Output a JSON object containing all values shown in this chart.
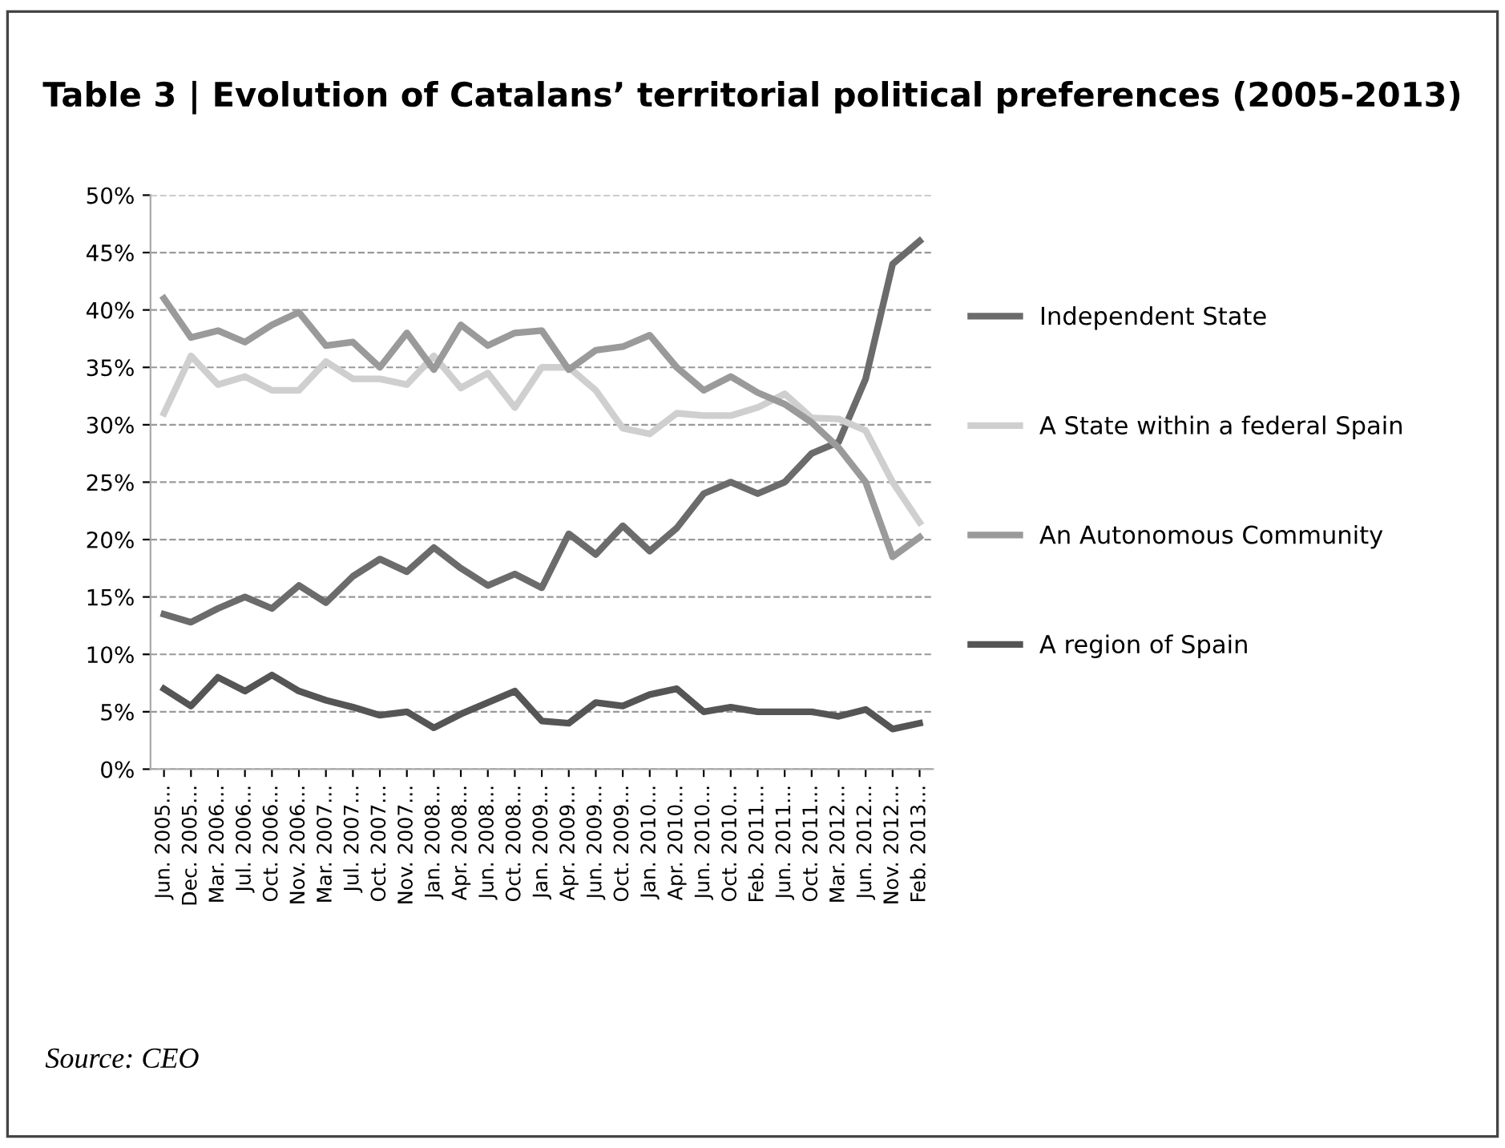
{
  "chart_data": {
    "type": "line",
    "title": "Table 3 | Evolution of Catalans’ territorial political preferences (2005-2013)",
    "categories": [
      "Jun. 2005...",
      "Dec. 2005...",
      "Mar. 2006...",
      "Jul. 2006...",
      "Oct. 2006...",
      "Nov. 2006...",
      "Mar. 2007...",
      "Jul. 2007...",
      "Oct. 2007...",
      "Nov. 2007...",
      "Jan. 2008...",
      "Apr. 2008...",
      "Jun. 2008...",
      "Oct. 2008...",
      "Jan. 2009...",
      "Apr. 2009...",
      "Jun. 2009...",
      "Oct. 2009...",
      "Jan. 2010...",
      "Apr. 2010...",
      "Jun. 2010...",
      "Oct. 2010...",
      "Feb. 2011...",
      "Jun. 2011...",
      "Oct. 2011...",
      "Mar. 2012...",
      "Jun. 2012...",
      "Nov. 2012...",
      "Feb. 2013..."
    ],
    "series": [
      {
        "name": "Independent State",
        "color": "#6b6b6b",
        "values": [
          13.5,
          12.8,
          14,
          15,
          14,
          16,
          14.5,
          16.8,
          18.3,
          17.2,
          19.3,
          17.5,
          16,
          17,
          15.8,
          20.5,
          18.7,
          21.2,
          19,
          21,
          24,
          25,
          24,
          25,
          27.5,
          28.5,
          34,
          44,
          46
        ]
      },
      {
        "name": "A State within a federal Spain",
        "color": "#cfcfcf",
        "values": [
          31,
          36,
          33.5,
          34.2,
          33,
          33,
          35.5,
          34,
          34,
          33.5,
          36,
          33.2,
          34.5,
          31.5,
          35,
          35,
          33,
          29.7,
          29.2,
          31,
          30.8,
          30.8,
          31.5,
          32.7,
          30.6,
          30.5,
          29.5,
          25,
          21.5
        ]
      },
      {
        "name": "An Autonomous Community",
        "color": "#9a9a9a",
        "values": [
          41,
          37.6,
          38.2,
          37.2,
          38.7,
          39.8,
          36.9,
          37.2,
          35,
          38,
          34.8,
          38.7,
          36.9,
          38,
          38.2,
          34.8,
          36.5,
          36.8,
          37.8,
          35,
          33,
          34.2,
          32.8,
          31.8,
          30.2,
          28,
          25,
          18.5,
          20.2
        ]
      },
      {
        "name": "A region of Spain",
        "color": "#555555",
        "values": [
          7,
          5.5,
          8,
          6.8,
          8.2,
          6.8,
          6,
          5.4,
          4.7,
          5,
          3.6,
          4.8,
          5.8,
          6.8,
          4.2,
          4,
          5.8,
          5.5,
          6.5,
          7,
          5,
          5.4,
          5,
          5,
          5,
          4.6,
          5.2,
          3.5,
          4
        ]
      }
    ],
    "ylim": [
      0,
      50
    ],
    "yticks": [
      {
        "value": 0,
        "label": "0%"
      },
      {
        "value": 5,
        "label": "5%"
      },
      {
        "value": 10,
        "label": "10%"
      },
      {
        "value": 15,
        "label": "15%"
      },
      {
        "value": 20,
        "label": "20%"
      },
      {
        "value": 25,
        "label": "25%"
      },
      {
        "value": 30,
        "label": "30%"
      },
      {
        "value": 35,
        "label": "35%"
      },
      {
        "value": 40,
        "label": "40%"
      },
      {
        "value": 45,
        "label": "45%"
      },
      {
        "value": 50,
        "label": "50%"
      }
    ],
    "grid": "y",
    "legend": "right",
    "marker": "none",
    "line_style": "solid",
    "annotations": [
      "Source: CEO"
    ]
  }
}
